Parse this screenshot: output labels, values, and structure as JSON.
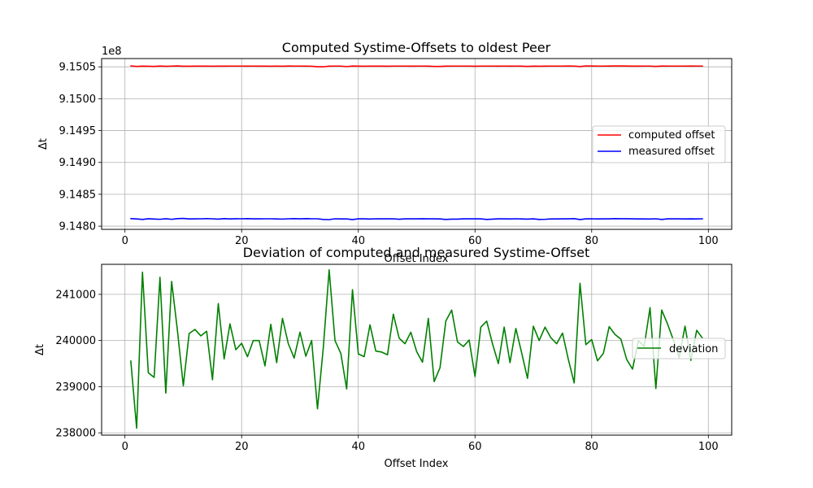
{
  "chart_data": [
    {
      "type": "line",
      "title": "Computed Systime-Offsets to oldest Peer",
      "xlabel": "Offset Index",
      "ylabel": "Δt",
      "y_offset_label": "1e8",
      "xlim": [
        -4,
        104
      ],
      "ylim": [
        9.14795,
        9.15063
      ],
      "xticks": [
        0,
        20,
        40,
        60,
        80,
        100
      ],
      "xtick_labels": [
        "0",
        "20",
        "40",
        "60",
        "80",
        "100"
      ],
      "yticks": [
        9.148,
        9.1485,
        9.149,
        9.1495,
        9.15,
        9.1505
      ],
      "ytick_labels": [
        "9.1480",
        "9.1485",
        "9.1490",
        "9.1495",
        "9.1500",
        "9.1505"
      ],
      "grid": true,
      "legend_position": "center-right",
      "x_start": 1,
      "series": [
        {
          "name": "computed offset",
          "color": "#ff0000",
          "values": [
            9.150514,
            9.150507,
            9.150511,
            9.150509,
            9.150506,
            9.150513,
            9.150508,
            9.150512,
            9.150514,
            9.15051,
            9.15051,
            9.150511,
            9.150511,
            9.150512,
            9.15051,
            9.150512,
            9.150511,
            9.150512,
            9.150512,
            9.150512,
            9.150511,
            9.150512,
            9.150511,
            9.150512,
            9.15051,
            9.150512,
            9.15051,
            9.150513,
            9.150512,
            9.150512,
            9.150511,
            9.15051,
            9.150502,
            9.150501,
            9.150511,
            9.150512,
            9.150512,
            9.150504,
            9.150513,
            9.150511,
            9.15051,
            9.150512,
            9.150511,
            9.150511,
            9.15051,
            9.150512,
            9.150512,
            9.150512,
            9.150511,
            9.150512,
            9.150512,
            9.150511,
            9.150506,
            9.150507,
            9.150511,
            9.150512,
            9.150512,
            9.150512,
            9.150512,
            9.15051,
            9.150512,
            9.150512,
            9.150512,
            9.150511,
            9.150512,
            9.150511,
            9.150512,
            9.150511,
            9.150507,
            9.150511,
            9.15051,
            9.150511,
            9.150512,
            9.150512,
            9.150512,
            9.150513,
            9.150512,
            9.150505,
            9.150515,
            9.150513,
            9.150512,
            9.150512,
            9.150513,
            9.150514,
            9.150514,
            9.150513,
            9.150511,
            9.150511,
            9.150512,
            9.150512,
            9.150507,
            9.150513,
            9.150512,
            9.150512,
            9.150512,
            9.150512,
            9.150513,
            9.150512,
            9.150512
          ]
        },
        {
          "name": "measured offset",
          "color": "#0000ff",
          "values": [
            9.148118,
            9.148114,
            9.148105,
            9.148117,
            9.148112,
            9.148108,
            9.148117,
            9.148108,
            9.148118,
            9.148121,
            9.148114,
            9.148115,
            9.148116,
            9.148118,
            9.148116,
            9.14811,
            9.148118,
            9.148114,
            9.148117,
            9.148116,
            9.148118,
            9.148115,
            9.148115,
            9.148116,
            9.148116,
            9.148114,
            9.148111,
            9.148116,
            9.148118,
            9.148115,
            9.148118,
            9.148116,
            9.148116,
            9.148105,
            9.148103,
            9.148116,
            9.148114,
            9.148113,
            9.148104,
            9.148115,
            9.148115,
            9.148112,
            9.148116,
            9.148115,
            9.148115,
            9.148116,
            9.148109,
            9.148115,
            9.148115,
            9.148115,
            9.148117,
            9.148115,
            9.148115,
            9.148113,
            9.148106,
            9.14811,
            9.14811,
            9.148115,
            9.148115,
            9.148115,
            9.148115,
            9.148106,
            9.14811,
            9.148115,
            9.148115,
            9.148114,
            9.148116,
            9.148114,
            9.14811,
            9.148115,
            9.148105,
            9.148108,
            9.148113,
            9.148113,
            9.148115,
            9.148115,
            9.148118,
            9.148104,
            9.148115,
            9.148116,
            9.148114,
            9.148115,
            9.148115,
            9.148118,
            9.148117,
            9.148117,
            9.148115,
            9.148114,
            9.148114,
            9.148112,
            9.148116,
            9.148105,
            9.148115,
            9.148115,
            9.148115,
            9.148114,
            9.148115,
            9.148114,
            9.148116
          ]
        }
      ]
    },
    {
      "type": "line",
      "title": "Deviation of computed and measured Systime-Offset",
      "xlabel": "Offset Index",
      "ylabel": "Δt",
      "xlim": [
        -4,
        104
      ],
      "ylim": [
        237950,
        241650
      ],
      "xticks": [
        0,
        20,
        40,
        60,
        80,
        100
      ],
      "xtick_labels": [
        "0",
        "20",
        "40",
        "60",
        "80",
        "100"
      ],
      "yticks": [
        238000,
        239000,
        240000,
        241000
      ],
      "ytick_labels": [
        "238000",
        "239000",
        "240000",
        "241000"
      ],
      "grid": true,
      "legend_position": "center-right",
      "x_start": 1,
      "series": [
        {
          "name": "deviation",
          "color": "#008000",
          "values": [
            239560,
            238100,
            241480,
            239300,
            239200,
            241370,
            238860,
            241280,
            240210,
            239020,
            240150,
            240240,
            240100,
            240200,
            239150,
            240800,
            239600,
            240360,
            239800,
            239940,
            239650,
            240000,
            240000,
            239450,
            240350,
            239520,
            240480,
            239930,
            239620,
            240180,
            239660,
            240000,
            238520,
            239850,
            241530,
            240000,
            239720,
            238950,
            241100,
            239710,
            239650,
            240340,
            239770,
            239750,
            239690,
            240570,
            240050,
            239930,
            240180,
            239760,
            239530,
            240480,
            239110,
            239410,
            240420,
            240660,
            239970,
            239870,
            240010,
            239220,
            240290,
            240420,
            239930,
            239500,
            240290,
            239520,
            240260,
            239730,
            239180,
            240310,
            240000,
            240290,
            240060,
            239930,
            240160,
            239590,
            239080,
            241240,
            239910,
            240020,
            239560,
            239720,
            240300,
            240130,
            240030,
            239590,
            239380,
            240000,
            239870,
            240710,
            238960,
            240660,
            240360,
            240010,
            239630,
            240310,
            239570,
            240220,
            240050
          ]
        }
      ]
    }
  ]
}
